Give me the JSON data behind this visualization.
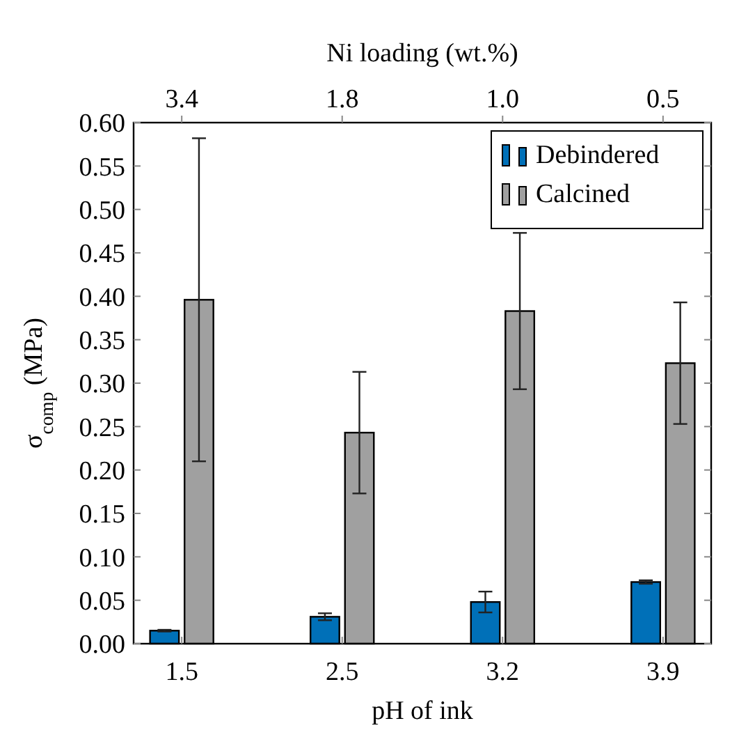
{
  "chart_data": {
    "type": "bar",
    "xlabel": "pH of ink",
    "ylabel": "σ$_{comp}$ (MPa)",
    "x2label": "Ni loading (wt.%)",
    "categories": [
      "1.5",
      "2.5",
      "3.2",
      "3.9"
    ],
    "annotations": [
      "3.4",
      "1.8",
      "1.0",
      "0.5"
    ],
    "series": [
      {
        "name": "Debindered",
        "color": "#0070b8",
        "values": [
          0.015,
          0.031,
          0.048,
          0.071
        ],
        "errors": [
          0.001,
          0.004,
          0.012,
          0.002
        ]
      },
      {
        "name": "Calcined",
        "color": "#a0a0a0",
        "values": [
          0.396,
          0.243,
          0.383,
          0.323
        ],
        "errors": [
          0.186,
          0.07,
          0.09,
          0.07
        ]
      }
    ],
    "ylim": [
      0,
      0.6
    ],
    "yticks": [
      {
        "value": 0,
        "label": "0.00"
      },
      0.05,
      {
        "value": 0.1,
        "label": "0.10"
      },
      0.15,
      {
        "value": 0.2,
        "label": "0.20"
      },
      0.25,
      {
        "value": 0.3,
        "label": "0.30"
      },
      0.35,
      {
        "value": 0.4,
        "label": "0.40"
      },
      0.45,
      {
        "value": 0.5,
        "label": "0.50"
      },
      0.55,
      {
        "value": 0.6,
        "label": "0.60"
      }
    ],
    "grid": false,
    "legend": "top right"
  }
}
